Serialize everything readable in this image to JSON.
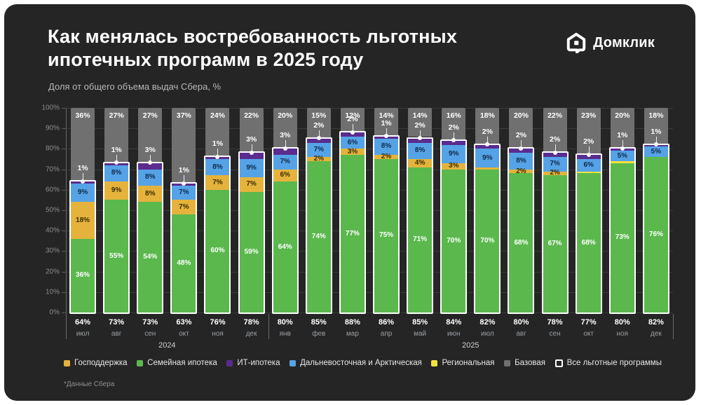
{
  "header": {
    "title_line1": "Как менялась востребованность льготных",
    "title_line2": "ипотечных программ в 2025 году",
    "subtitle": "Доля от общего объема выдач Сбера, %",
    "logo_text": "Домклик"
  },
  "footnote": "*Данные Сбера",
  "colors": {
    "gos": "#E5B33C",
    "family": "#5BB84D",
    "it": "#5A2C8F",
    "fareast": "#55A3E6",
    "region": "#F2E33C",
    "base": "#707070",
    "all_outline": "#FFFFFF",
    "card_bg": "#252525",
    "grid": "#3A3A3A",
    "label_on_green": "#FFFFFF",
    "label_on_yellow": "#3A2C05",
    "label_on_blue": "#10294A",
    "label_thin_on_green": "#1E3317"
  },
  "legend": [
    {
      "key": "gos",
      "label": "Господдержка"
    },
    {
      "key": "family",
      "label": "Семейная ипотека"
    },
    {
      "key": "it",
      "label": "ИТ-ипотека"
    },
    {
      "key": "fareast",
      "label": "Дальневосточная и Арктическая"
    },
    {
      "key": "region",
      "label": "Региональная"
    },
    {
      "key": "base",
      "label": "Базовая"
    },
    {
      "key": "all",
      "label": "Все льготные программы"
    }
  ],
  "chart_data": {
    "type": "bar",
    "variant": "stacked-percent",
    "title": "Как менялась востребованность льготных ипотечных программ в 2025 году",
    "subtitle": "Доля от общего объема выдач Сбера, %",
    "ylabel": "",
    "ylim": [
      0,
      100
    ],
    "yticks": [
      "0%",
      "10%",
      "20%",
      "30%",
      "40%",
      "50%",
      "60%",
      "70%",
      "80%",
      "90%",
      "100%"
    ],
    "grid": true,
    "legend_position": "bottom",
    "series_order_bottom_to_top": [
      "family",
      "gos",
      "region",
      "fareast",
      "it",
      "base"
    ],
    "total_marker": "Все льготные программы (белая рамка и точка) = сумма всех сегментов кроме Базовая",
    "year_groups": [
      {
        "label": "2024",
        "from_index": 0,
        "to_index": 5
      },
      {
        "label": "2025",
        "from_index": 6,
        "to_index": 17
      }
    ],
    "months": [
      {
        "month": "июл",
        "year": 2024,
        "total": 64,
        "base": 36,
        "it": 1,
        "fareast": 9,
        "region": 0,
        "gos": 18,
        "family": 36
      },
      {
        "month": "авг",
        "year": 2024,
        "total": 73,
        "base": 27,
        "it": 1,
        "fareast": 8,
        "region": 0,
        "gos": 9,
        "family": 55
      },
      {
        "month": "сен",
        "year": 2024,
        "total": 73,
        "base": 27,
        "it": 3,
        "fareast": 8,
        "region": 0,
        "gos": 8,
        "family": 54
      },
      {
        "month": "окт",
        "year": 2024,
        "total": 63,
        "base": 37,
        "it": 1,
        "fareast": 7,
        "region": 0,
        "gos": 7,
        "family": 48
      },
      {
        "month": "ноя",
        "year": 2024,
        "total": 76,
        "base": 24,
        "it": 1,
        "fareast": 8,
        "region": 0,
        "gos": 7,
        "family": 60
      },
      {
        "month": "дек",
        "year": 2024,
        "total": 78,
        "base": 22,
        "it": 3,
        "fareast": 9,
        "region": 0,
        "gos": 7,
        "family": 59
      },
      {
        "month": "янв",
        "year": 2025,
        "total": 80,
        "base": 20,
        "it": 3,
        "fareast": 7,
        "region": 0,
        "gos": 6,
        "family": 64
      },
      {
        "month": "фев",
        "year": 2025,
        "total": 85,
        "base": 15,
        "it": 2,
        "fareast": 7,
        "region": 0,
        "gos": 2,
        "family": 74
      },
      {
        "month": "мар",
        "year": 2025,
        "total": 88,
        "base": 12,
        "it": 2,
        "fareast": 6,
        "region": 0,
        "gos": 3,
        "family": 77
      },
      {
        "month": "апр",
        "year": 2025,
        "total": 86,
        "base": 14,
        "it": 1,
        "fareast": 8,
        "region": 0,
        "gos": 2,
        "family": 75
      },
      {
        "month": "май",
        "year": 2025,
        "total": 85,
        "base": 14,
        "it": 2,
        "fareast": 8,
        "region": 0,
        "gos": 4,
        "family": 71
      },
      {
        "month": "июн",
        "year": 2025,
        "total": 84,
        "base": 16,
        "it": 2,
        "fareast": 9,
        "region": 0,
        "gos": 3,
        "family": 70
      },
      {
        "month": "июл",
        "year": 2025,
        "total": 82,
        "base": 18,
        "it": 2,
        "fareast": 9,
        "region": 0,
        "gos": 1,
        "family": 70
      },
      {
        "month": "авг",
        "year": 2025,
        "total": 80,
        "base": 20,
        "it": 2,
        "fareast": 8,
        "region": 0,
        "gos": 2,
        "family": 68
      },
      {
        "month": "сен",
        "year": 2025,
        "total": 78,
        "base": 22,
        "it": 2,
        "fareast": 7,
        "region": 0,
        "gos": 2,
        "family": 67
      },
      {
        "month": "окт",
        "year": 2025,
        "total": 77,
        "base": 23,
        "it": 2,
        "fareast": 6,
        "region": 1,
        "gos": 0,
        "family": 68
      },
      {
        "month": "ноя",
        "year": 2025,
        "total": 80,
        "base": 20,
        "it": 1,
        "fareast": 5,
        "region": 1,
        "gos": 0,
        "family": 73
      },
      {
        "month": "дек",
        "year": 2025,
        "total": 82,
        "base": 18,
        "it": 1,
        "fareast": 5,
        "region": 0,
        "gos": 0,
        "family": 76
      }
    ]
  }
}
